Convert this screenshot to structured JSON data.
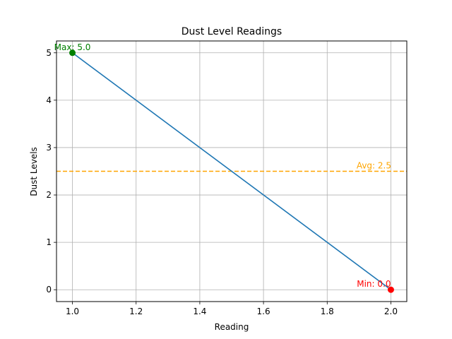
{
  "chart_data": {
    "type": "line",
    "title": "Dust Level Readings",
    "xlabel": "Reading",
    "ylabel": "Dust Levels",
    "xlim": [
      0.95,
      2.05
    ],
    "ylim": [
      -0.25,
      5.25
    ],
    "x_ticks": [
      1.0,
      1.2,
      1.4,
      1.6,
      1.8,
      2.0
    ],
    "x_tick_labels": [
      "1.0",
      "1.2",
      "1.4",
      "1.6",
      "1.8",
      "2.0"
    ],
    "y_ticks": [
      0,
      1,
      2,
      3,
      4,
      5
    ],
    "y_tick_labels": [
      "0",
      "1",
      "2",
      "3",
      "4",
      "5"
    ],
    "grid": true,
    "series": [
      {
        "x": [
          1.0,
          2.0
        ],
        "y": [
          5.0,
          0.0
        ],
        "color": "#1f77b4"
      }
    ],
    "average": {
      "value": 2.5,
      "label": "Avg: 2.5",
      "color": "#ffa500"
    },
    "max_point": {
      "x": 1.0,
      "y": 5.0,
      "label": "Max: 5.0",
      "color": "#008000"
    },
    "min_point": {
      "x": 2.0,
      "y": 0.0,
      "label": "Min: 0.0",
      "color": "#ff0000"
    }
  }
}
